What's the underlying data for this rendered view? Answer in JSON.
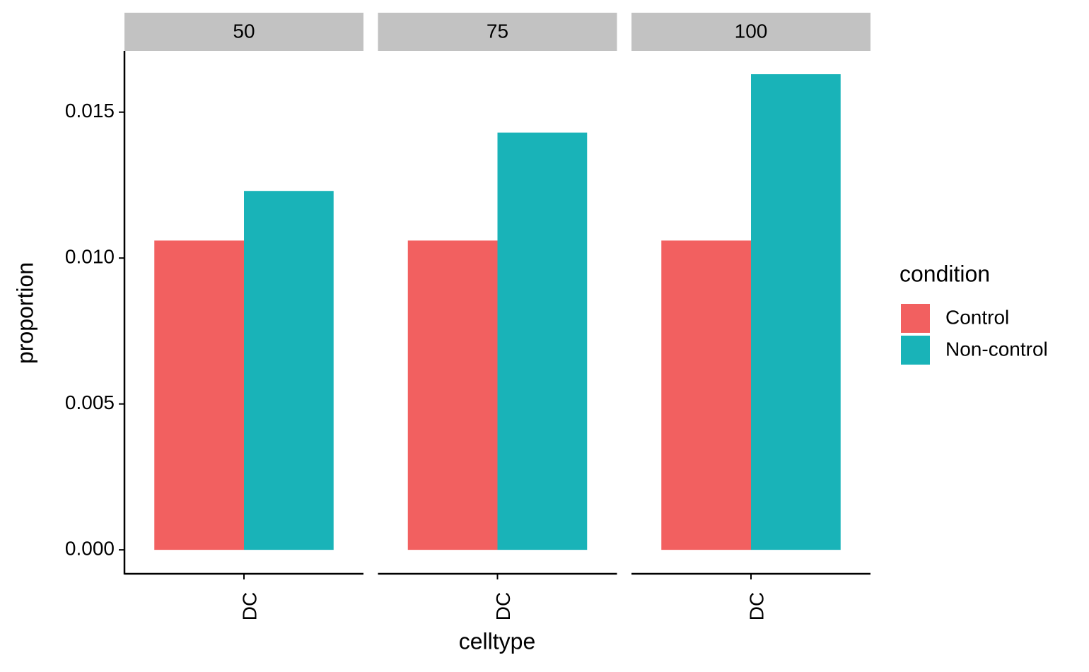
{
  "chart_data": {
    "type": "bar",
    "facets": [
      "50",
      "75",
      "100"
    ],
    "categories": [
      "DC",
      "DC",
      "DC"
    ],
    "series": [
      {
        "name": "Control",
        "color": "#f26060",
        "values": [
          0.0106,
          0.0106,
          0.0106
        ]
      },
      {
        "name": "Non-control",
        "color": "#19b3b8",
        "values": [
          0.0123,
          0.0143,
          0.0163
        ]
      }
    ],
    "xlabel": "celltype",
    "ylabel": "proportion",
    "legend_title": "condition",
    "legend_position": "right",
    "ylim": [
      -0.00082,
      0.0171
    ],
    "yticks": [
      {
        "value": 0,
        "label": "0.000"
      },
      0.005,
      {
        "value": 0.01,
        "label": "0.010"
      },
      0.015
    ],
    "grid": false
  }
}
